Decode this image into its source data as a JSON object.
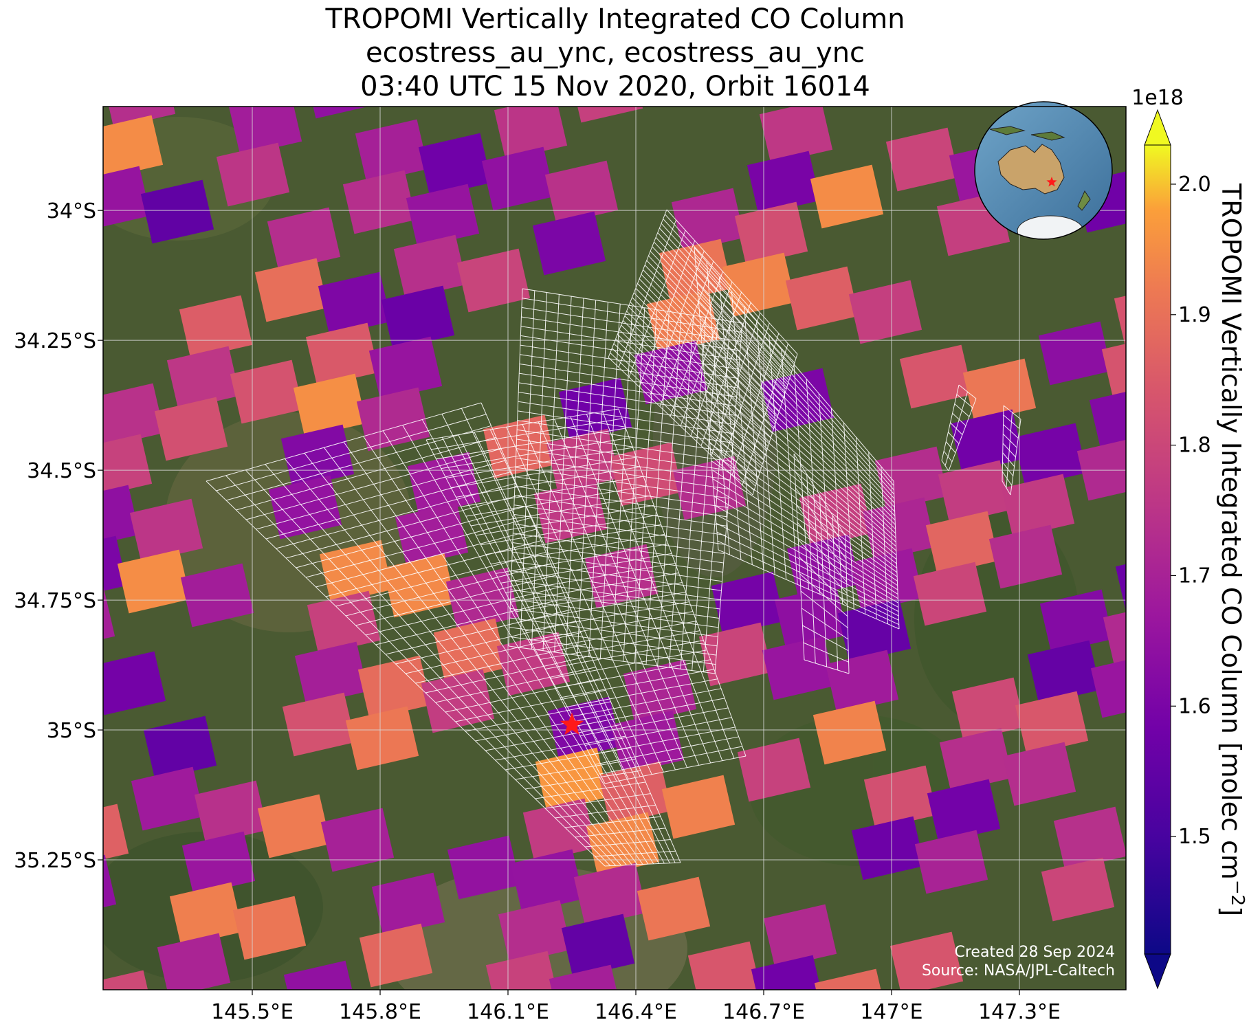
{
  "title": {
    "line1": "TROPOMI Vertically Integrated CO Column",
    "line2": "ecostress_au_ync, ecostress_au_ync",
    "line3": "03:40 UTC 15 Nov 2020, Orbit 16014"
  },
  "map": {
    "lon_range": [
      145.15,
      147.55
    ],
    "lat_range": [
      -35.5,
      -33.8
    ],
    "lon_ticks": [
      {
        "value": 145.5,
        "label": "145.5°E"
      },
      {
        "value": 145.8,
        "label": "145.8°E"
      },
      {
        "value": 146.1,
        "label": "146.1°E"
      },
      {
        "value": 146.4,
        "label": "146.4°E"
      },
      {
        "value": 146.7,
        "label": "146.7°E"
      },
      {
        "value": 147.0,
        "label": "147°E"
      },
      {
        "value": 147.3,
        "label": "147.3°E"
      }
    ],
    "lat_ticks": [
      {
        "value": -34.0,
        "label": "34°S"
      },
      {
        "value": -34.25,
        "label": "34.25°S"
      },
      {
        "value": -34.5,
        "label": "34.5°S"
      },
      {
        "value": -34.75,
        "label": "34.75°S"
      },
      {
        "value": -35.0,
        "label": "35°S"
      },
      {
        "value": -35.25,
        "label": "35.25°S"
      }
    ],
    "site_marker": {
      "lon": 146.25,
      "lat": -34.99,
      "color": "#ff1a1a",
      "icon": "star-icon"
    },
    "gridlines": true,
    "background": "satellite imagery",
    "overlay": "TROPOMI CO column pixels with ECOSTRESS swath grid outlines"
  },
  "colorbar": {
    "label": "TROPOMI Vertically Integrated CO Column [molec cm",
    "label_exponent": "−2",
    "label_close": "]",
    "multiplier": "1e18",
    "min": 1.41,
    "max": 2.03,
    "ticks": [
      {
        "value": 1.5,
        "label": "1.5"
      },
      {
        "value": 1.6,
        "label": "1.6"
      },
      {
        "value": 1.7,
        "label": "1.7"
      },
      {
        "value": 1.8,
        "label": "1.8"
      },
      {
        "value": 1.9,
        "label": "1.9"
      },
      {
        "value": 2.0,
        "label": "2.0"
      }
    ],
    "colormap": "plasma",
    "extend": "both"
  },
  "inset": {
    "icon": "globe-icon",
    "region": "Australia",
    "marker_color": "#ff1a1a"
  },
  "credits": {
    "created": "Created 28 Sep 2024",
    "source": "Source: NASA/JPL-Caltech"
  }
}
